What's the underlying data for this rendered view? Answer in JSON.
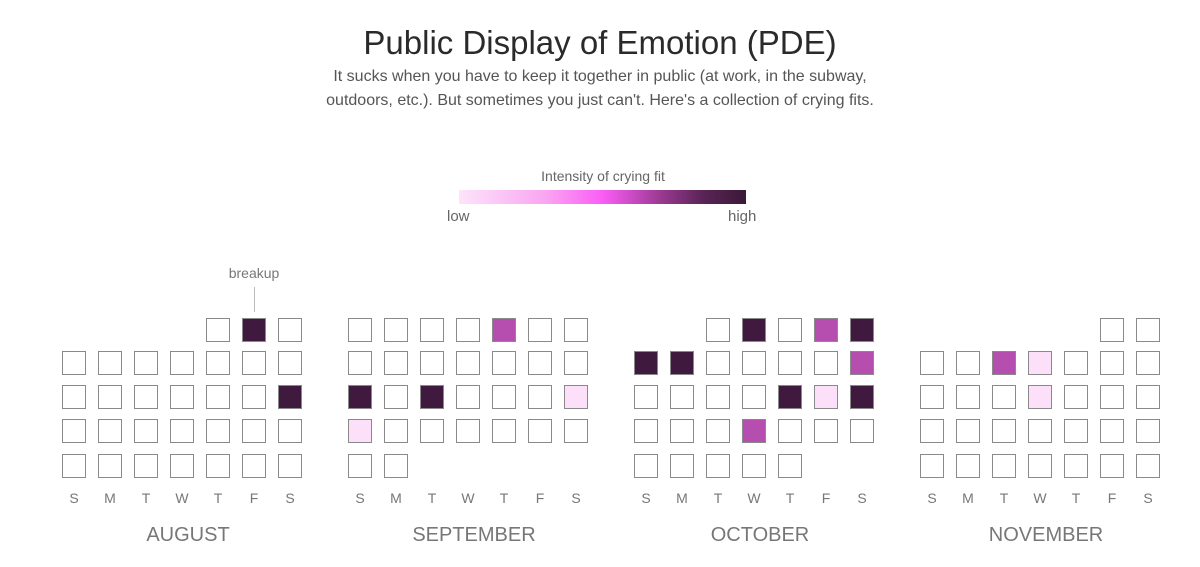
{
  "title": "Public Display of Emotion (PDE)",
  "subtitle_lines": [
    "It sucks when you have to keep it together in public (at work, in the subway,",
    "outdoors, etc.). But sometimes you just can't. Here's a collection of crying fits."
  ],
  "legend": {
    "title": "Intensity of crying fit",
    "low": "low",
    "high": "high"
  },
  "colors": {
    "high": "#3f1a3e",
    "medium": "#b64eb0",
    "low": "#fce0fa",
    "none": "#ffffff"
  },
  "weekday_labels": [
    "S",
    "M",
    "T",
    "W",
    "T",
    "F",
    "S"
  ],
  "annotation": {
    "text": "breakup",
    "month": "AUGUST",
    "day": 2
  },
  "months": [
    {
      "name": "AUGUST",
      "start_weekday": 4,
      "days": 31,
      "fits": {
        "2": "high",
        "17": "high"
      }
    },
    {
      "name": "SEPTEMBER",
      "start_weekday": 0,
      "days": 30,
      "fits": {
        "5": "medium",
        "15": "high",
        "17": "high",
        "21": "low",
        "22": "low"
      }
    },
    {
      "name": "OCTOBER",
      "start_weekday": 2,
      "days": 31,
      "fits": {
        "2": "high",
        "4": "medium",
        "5": "high",
        "6": "high",
        "7": "high",
        "12": "medium",
        "17": "high",
        "18": "low",
        "19": "high",
        "23": "medium"
      }
    },
    {
      "name": "NOVEMBER",
      "start_weekday": 5,
      "days": 30,
      "fits": {
        "5": "medium",
        "6": "low",
        "13": "low"
      }
    }
  ]
}
